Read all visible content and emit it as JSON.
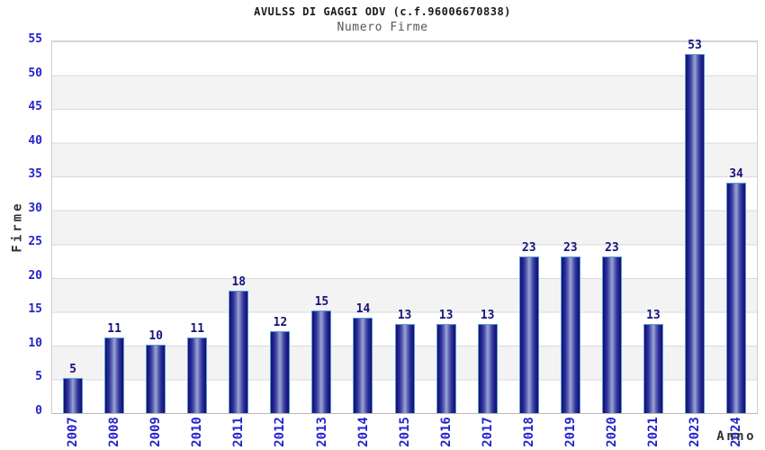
{
  "title": "AVULSS DI GAGGI ODV (c.f.96006670838)",
  "subtitle": "Numero Firme",
  "chart_data": {
    "type": "bar",
    "categories": [
      "2007",
      "2008",
      "2009",
      "2010",
      "2011",
      "2012",
      "2013",
      "2014",
      "2015",
      "2016",
      "2017",
      "2018",
      "2019",
      "2020",
      "2021",
      "2023",
      "2024"
    ],
    "values": [
      5,
      11,
      10,
      11,
      18,
      12,
      15,
      14,
      13,
      13,
      13,
      23,
      23,
      23,
      13,
      53,
      34
    ],
    "title": "AVULSS DI GAGGI ODV (c.f.96006670838)",
    "subtitle": "Numero Firme",
    "xlabel": "Anno",
    "ylabel": "Firme",
    "ylim": [
      0,
      55
    ],
    "ytick_step": 5,
    "grid": "horizontal-gridlines-with-alternating-bands",
    "legend": "none",
    "colors": {
      "bar_dark": "#1c1c8c",
      "bar_light": "#9ba4d6",
      "bar_border": "#5b9bd5",
      "tick_label": "#2424cc",
      "value_label": "#14147d",
      "band": "#f3f3f3",
      "gridline": "#d9d9d9",
      "plot_border": "#cfcfcf",
      "title_color": "#1b1b1b",
      "subtitle_color": "#555555",
      "axis_title_color": "#333333",
      "background": "#ffffff"
    }
  }
}
